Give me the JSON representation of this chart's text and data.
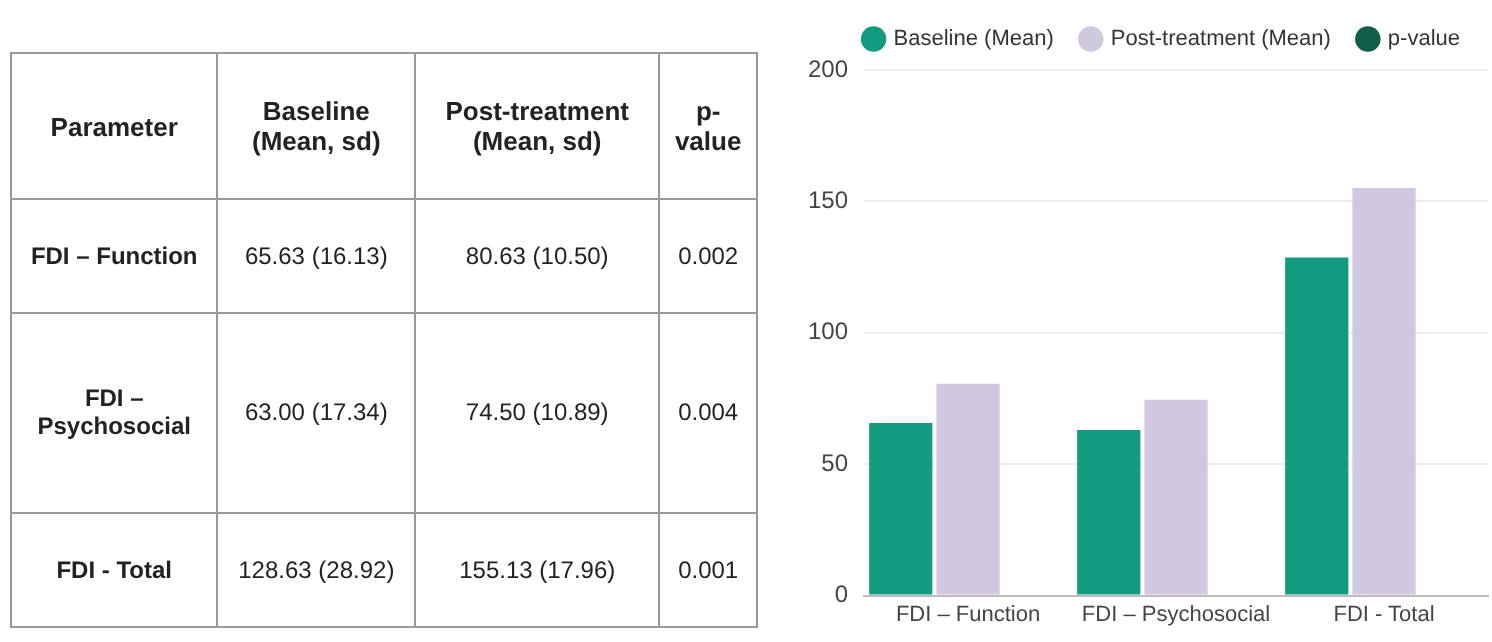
{
  "chart_data": [
    {
      "type": "other",
      "annotations": [
        "Parameter",
        "Baseline (Mean, sd)",
        "Post-treatment (Mean, sd)",
        "p-value",
        "FDI – Function",
        "65.63 (16.13)",
        "80.63 (10.50)",
        "0.002",
        "FDI – Psychosocial",
        "63.00 (17.34)",
        "74.50 (10.89)",
        "0.004",
        "FDI - Total",
        "128.63 (28.92)",
        "155.13 (17.96)",
        "0.001"
      ]
    },
    {
      "type": "bar",
      "categories": [
        "FDI – Function",
        "FDI – Psychosocial",
        "FDI - Total"
      ],
      "series": [
        {
          "name": "Baseline (Mean)",
          "color": "#139a80",
          "values": [
            65.63,
            63.0,
            128.63
          ]
        },
        {
          "name": "Post-treatment (Mean)",
          "color": "#d0c8de",
          "values": [
            80.63,
            74.5,
            155.13
          ]
        },
        {
          "name": "p-value",
          "color": "#0e5e4a",
          "values": [
            null,
            null,
            null
          ]
        }
      ],
      "ylim": [
        0,
        200
      ],
      "yticks": [
        0,
        50,
        100,
        150,
        200
      ],
      "grid": "y",
      "legend": "top"
    }
  ]
}
